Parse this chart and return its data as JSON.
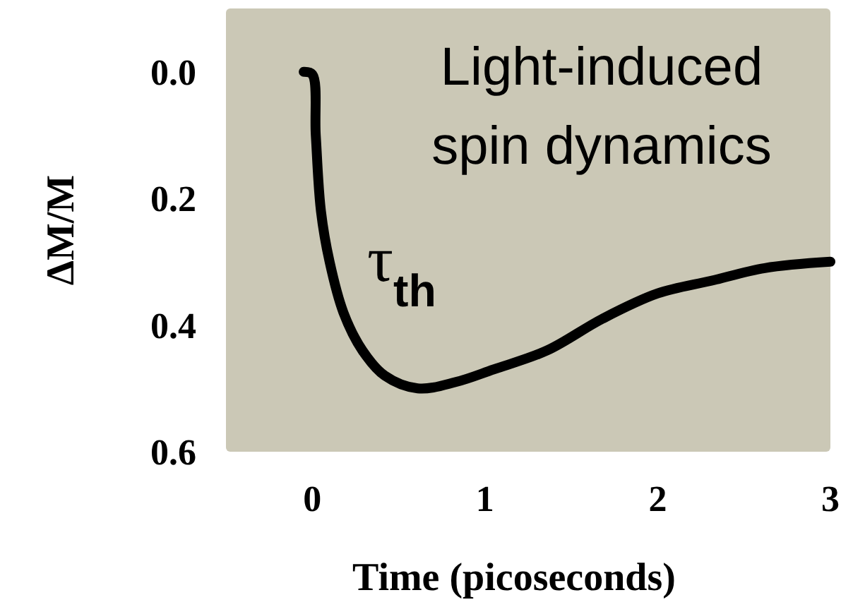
{
  "chart_data": {
    "type": "line",
    "xlabel": "Time (picoseconds)",
    "ylabel": "ΔM/M",
    "x": [
      -0.05,
      0,
      0.02,
      0.05,
      0.1,
      0.18,
      0.29,
      0.42,
      0.61,
      0.83,
      1.05,
      1.36,
      1.68,
      2.0,
      2.31,
      2.62,
      3.0
    ],
    "series": [
      {
        "color": "#000000",
        "values": [
          0,
          0.004,
          0.1,
          0.22,
          0.3,
          0.38,
          0.44,
          0.48,
          0.5,
          0.49,
          0.47,
          0.44,
          0.39,
          0.35,
          0.33,
          0.31,
          0.3
        ]
      }
    ],
    "xlim": [
      -0.5,
      3
    ],
    "xticks": [
      0,
      1,
      2,
      3
    ],
    "ylim": [
      0.6,
      -0.1
    ],
    "yticks": [
      "0.0",
      0.2,
      0.4,
      0.6
    ],
    "annotations": [
      "Light-induced spin dynamics",
      "τ$_{th}$"
    ],
    "grid": false,
    "marker": "none",
    "line_style": "solid"
  }
}
